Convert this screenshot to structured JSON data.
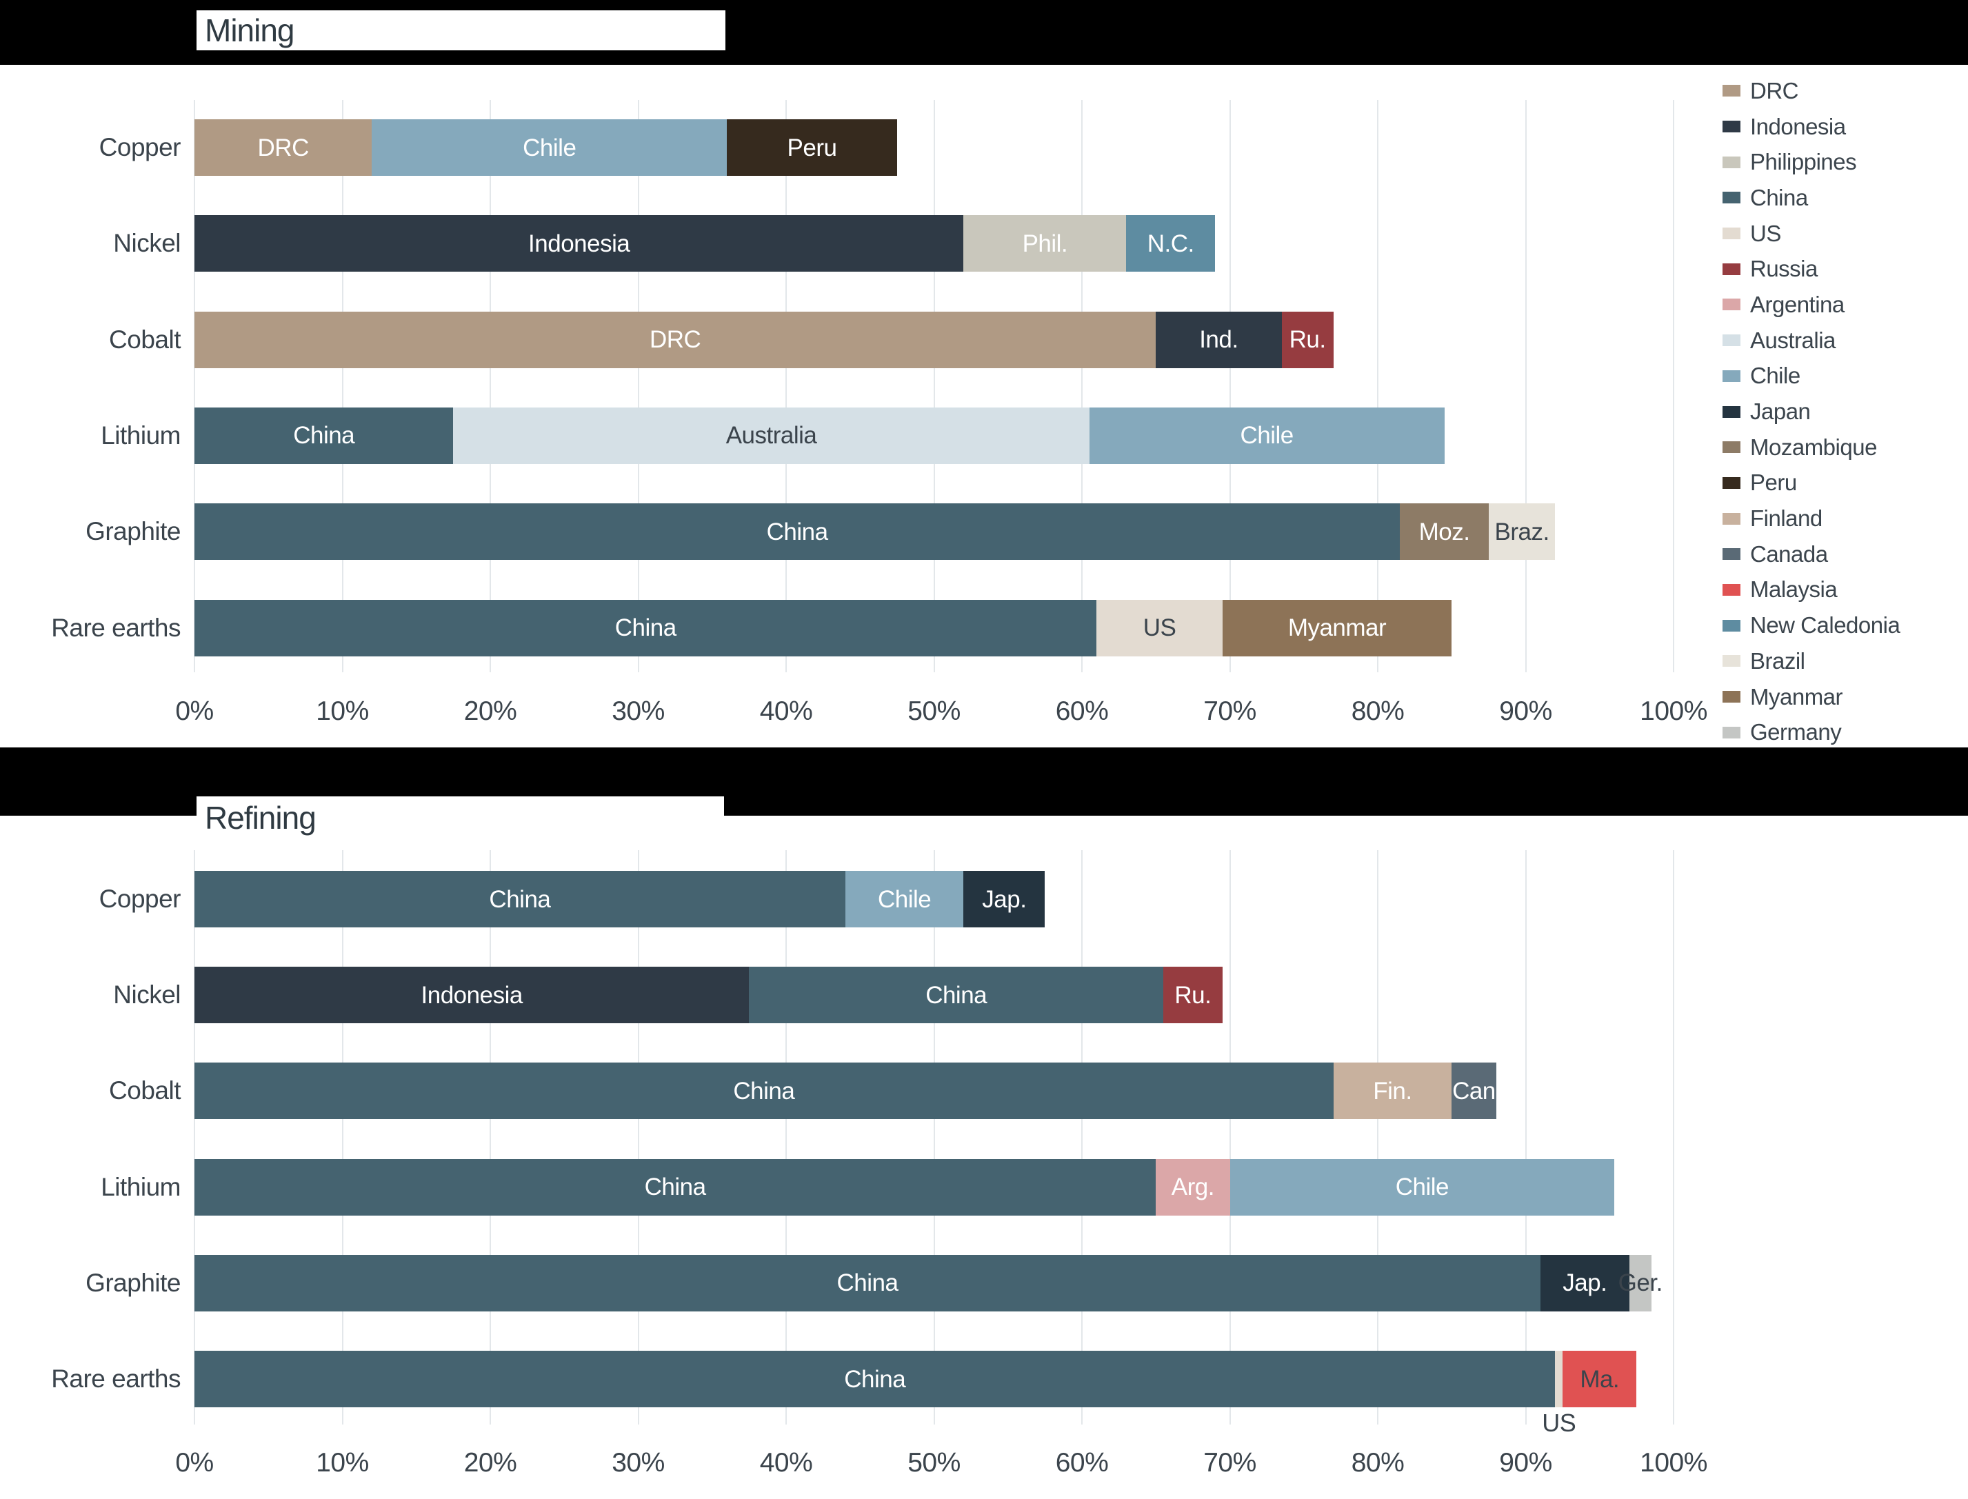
{
  "titles": {
    "mining": "Mining",
    "refining": "Refining"
  },
  "colors": {
    "background_band": "#000000",
    "text_dark": "#3b444c",
    "text_light": "#ffffff",
    "gridline": "#e3e7ea"
  },
  "palette": {
    "DRC": "#b09a84",
    "Indonesia": "#2f3a46",
    "Philippines": "#c9c7bc",
    "China": "#456370",
    "US": "#e3dbd1",
    "Russia": "#963c40",
    "Argentina": "#dba7a8",
    "Australia": "#d5e0e6",
    "Chile": "#85a9bc",
    "Japan": "#243440",
    "Mozambique": "#8d7b66",
    "Peru": "#362a1e",
    "Finland": "#c8b19e",
    "Canada": "#5a6a76",
    "Malaysia": "#e05252",
    "New Caledonia": "#5e8ca1",
    "Brazil": "#e7e3da",
    "Myanmar": "#8d7357",
    "Germany": "#c4c6c4"
  },
  "legend": {
    "items": [
      "DRC",
      "Indonesia",
      "Philippines",
      "China",
      "US",
      "Russia",
      "Argentina",
      "Australia",
      "Chile",
      "Japan",
      "Mozambique",
      "Peru",
      "Finland",
      "Canada",
      "Malaysia",
      "New Caledonia",
      "Brazil",
      "Myanmar",
      "Germany"
    ]
  },
  "axis": {
    "ticks": [
      "0%",
      "10%",
      "20%",
      "30%",
      "40%",
      "50%",
      "60%",
      "70%",
      "80%",
      "90%",
      "100%"
    ],
    "tick_values": [
      0,
      10,
      20,
      30,
      40,
      50,
      60,
      70,
      80,
      90,
      100
    ]
  },
  "chart_data": [
    {
      "type": "bar",
      "stacked": true,
      "orientation": "horizontal",
      "title": "Mining",
      "unit": "%",
      "xlim": [
        0,
        100
      ],
      "grid": true,
      "legend_position": "right",
      "categories": [
        "Copper",
        "Nickel",
        "Cobalt",
        "Lithium",
        "Graphite",
        "Rare earths"
      ],
      "rows": [
        {
          "category": "Copper",
          "segments": [
            {
              "country": "DRC",
              "label": "DRC",
              "value": 12,
              "label_dark": false
            },
            {
              "country": "Chile",
              "label": "Chile",
              "value": 24,
              "label_dark": false
            },
            {
              "country": "Peru",
              "label": "Peru",
              "value": 11.5,
              "label_dark": false
            }
          ]
        },
        {
          "category": "Nickel",
          "segments": [
            {
              "country": "Indonesia",
              "label": "Indonesia",
              "value": 52,
              "label_dark": false
            },
            {
              "country": "Philippines",
              "label": "Phil.",
              "value": 11,
              "label_dark": false
            },
            {
              "country": "New Caledonia",
              "label": "N.C.",
              "value": 6,
              "label_dark": false
            }
          ]
        },
        {
          "category": "Cobalt",
          "segments": [
            {
              "country": "DRC",
              "label": "DRC",
              "value": 65,
              "label_dark": false
            },
            {
              "country": "Indonesia",
              "label": "Ind.",
              "value": 8.5,
              "label_dark": false
            },
            {
              "country": "Russia",
              "label": "Ru.",
              "value": 3.5,
              "label_dark": false
            }
          ]
        },
        {
          "category": "Lithium",
          "segments": [
            {
              "country": "China",
              "label": "China",
              "value": 17.5,
              "label_dark": false
            },
            {
              "country": "Australia",
              "label": "Australia",
              "value": 43,
              "label_dark": true
            },
            {
              "country": "Chile",
              "label": "Chile",
              "value": 24,
              "label_dark": false
            }
          ]
        },
        {
          "category": "Graphite",
          "segments": [
            {
              "country": "China",
              "label": "China",
              "value": 81.5,
              "label_dark": false
            },
            {
              "country": "Mozambique",
              "label": "Moz.",
              "value": 6,
              "label_dark": false
            },
            {
              "country": "Brazil",
              "label": "Braz.",
              "value": 4.5,
              "label_dark": true
            }
          ]
        },
        {
          "category": "Rare earths",
          "segments": [
            {
              "country": "China",
              "label": "China",
              "value": 61,
              "label_dark": false
            },
            {
              "country": "US",
              "label": "US",
              "value": 8.5,
              "label_dark": true
            },
            {
              "country": "Myanmar",
              "label": "Myanmar",
              "value": 15.5,
              "label_dark": false
            }
          ]
        }
      ]
    },
    {
      "type": "bar",
      "stacked": true,
      "orientation": "horizontal",
      "title": "Refining",
      "unit": "%",
      "xlim": [
        0,
        100
      ],
      "grid": true,
      "legend_position": "none",
      "categories": [
        "Copper",
        "Nickel",
        "Cobalt",
        "Lithium",
        "Graphite",
        "Rare earths"
      ],
      "rows": [
        {
          "category": "Copper",
          "segments": [
            {
              "country": "China",
              "label": "China",
              "value": 44,
              "label_dark": false
            },
            {
              "country": "Chile",
              "label": "Chile",
              "value": 8,
              "label_dark": false
            },
            {
              "country": "Japan",
              "label": "Jap.",
              "value": 5.5,
              "label_dark": false
            }
          ]
        },
        {
          "category": "Nickel",
          "segments": [
            {
              "country": "Indonesia",
              "label": "Indonesia",
              "value": 37.5,
              "label_dark": false
            },
            {
              "country": "China",
              "label": "China",
              "value": 28,
              "label_dark": false
            },
            {
              "country": "Russia",
              "label": "Ru.",
              "value": 4,
              "label_dark": false
            }
          ]
        },
        {
          "category": "Cobalt",
          "segments": [
            {
              "country": "China",
              "label": "China",
              "value": 77,
              "label_dark": false
            },
            {
              "country": "Finland",
              "label": "Fin.",
              "value": 8,
              "label_dark": false
            },
            {
              "country": "Canada",
              "label": "Can",
              "value": 3,
              "label_dark": false
            }
          ]
        },
        {
          "category": "Lithium",
          "segments": [
            {
              "country": "China",
              "label": "China",
              "value": 65,
              "label_dark": false
            },
            {
              "country": "Argentina",
              "label": "Arg.",
              "value": 5,
              "label_dark": false
            },
            {
              "country": "Chile",
              "label": "Chile",
              "value": 26,
              "label_dark": false
            }
          ]
        },
        {
          "category": "Graphite",
          "segments": [
            {
              "country": "China",
              "label": "China",
              "value": 91,
              "label_dark": false
            },
            {
              "country": "Japan",
              "label": "Jap.",
              "value": 6,
              "label_dark": false
            },
            {
              "country": "Germany",
              "label": "Ger.",
              "value": 1.5,
              "label_dark": true
            }
          ]
        },
        {
          "category": "Rare earths",
          "segments": [
            {
              "country": "China",
              "label": "China",
              "value": 92,
              "label_dark": false
            },
            {
              "country": "US",
              "label": "US",
              "value": 0.5,
              "label_dark": true,
              "label_below": true
            },
            {
              "country": "Malaysia",
              "label": "Ma.",
              "value": 5,
              "label_dark": true
            }
          ]
        }
      ]
    }
  ]
}
